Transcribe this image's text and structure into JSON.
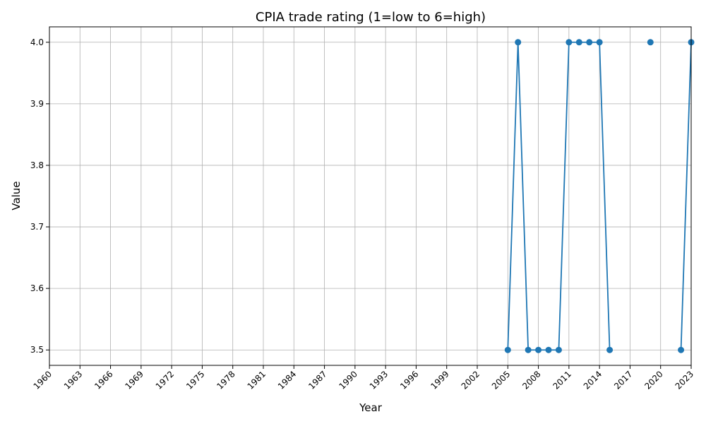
{
  "chart_data": {
    "type": "line",
    "title": "CPIA trade rating (1=low to 6=high)",
    "xlabel": "Year",
    "ylabel": "Value",
    "xlim": [
      1960,
      2023
    ],
    "ylim": [
      3.475,
      4.025
    ],
    "xticks": [
      1960,
      1963,
      1966,
      1969,
      1972,
      1975,
      1978,
      1981,
      1984,
      1987,
      1990,
      1993,
      1996,
      1999,
      2002,
      2005,
      2008,
      2011,
      2014,
      2017,
      2020,
      2023
    ],
    "yticks": [
      3.5,
      3.6,
      3.7,
      3.8,
      3.9,
      4.0
    ],
    "ytick_labels": [
      "3.5",
      "3.6",
      "3.7",
      "3.8",
      "3.9",
      "4.0"
    ],
    "grid": true,
    "color": "#1f77b4",
    "series": [
      {
        "name": "CPIA trade rating",
        "x": [
          2005,
          2006,
          2007,
          2008,
          2009,
          2010,
          2011,
          2012,
          2013,
          2014,
          2015,
          2016,
          2017,
          2018,
          2019,
          2020,
          2021,
          2022,
          2023
        ],
        "values": [
          3.5,
          4.0,
          3.5,
          3.5,
          3.5,
          3.5,
          4.0,
          4.0,
          4.0,
          4.0,
          3.5,
          null,
          null,
          null,
          4.0,
          null,
          null,
          3.5,
          4.0
        ]
      }
    ]
  }
}
